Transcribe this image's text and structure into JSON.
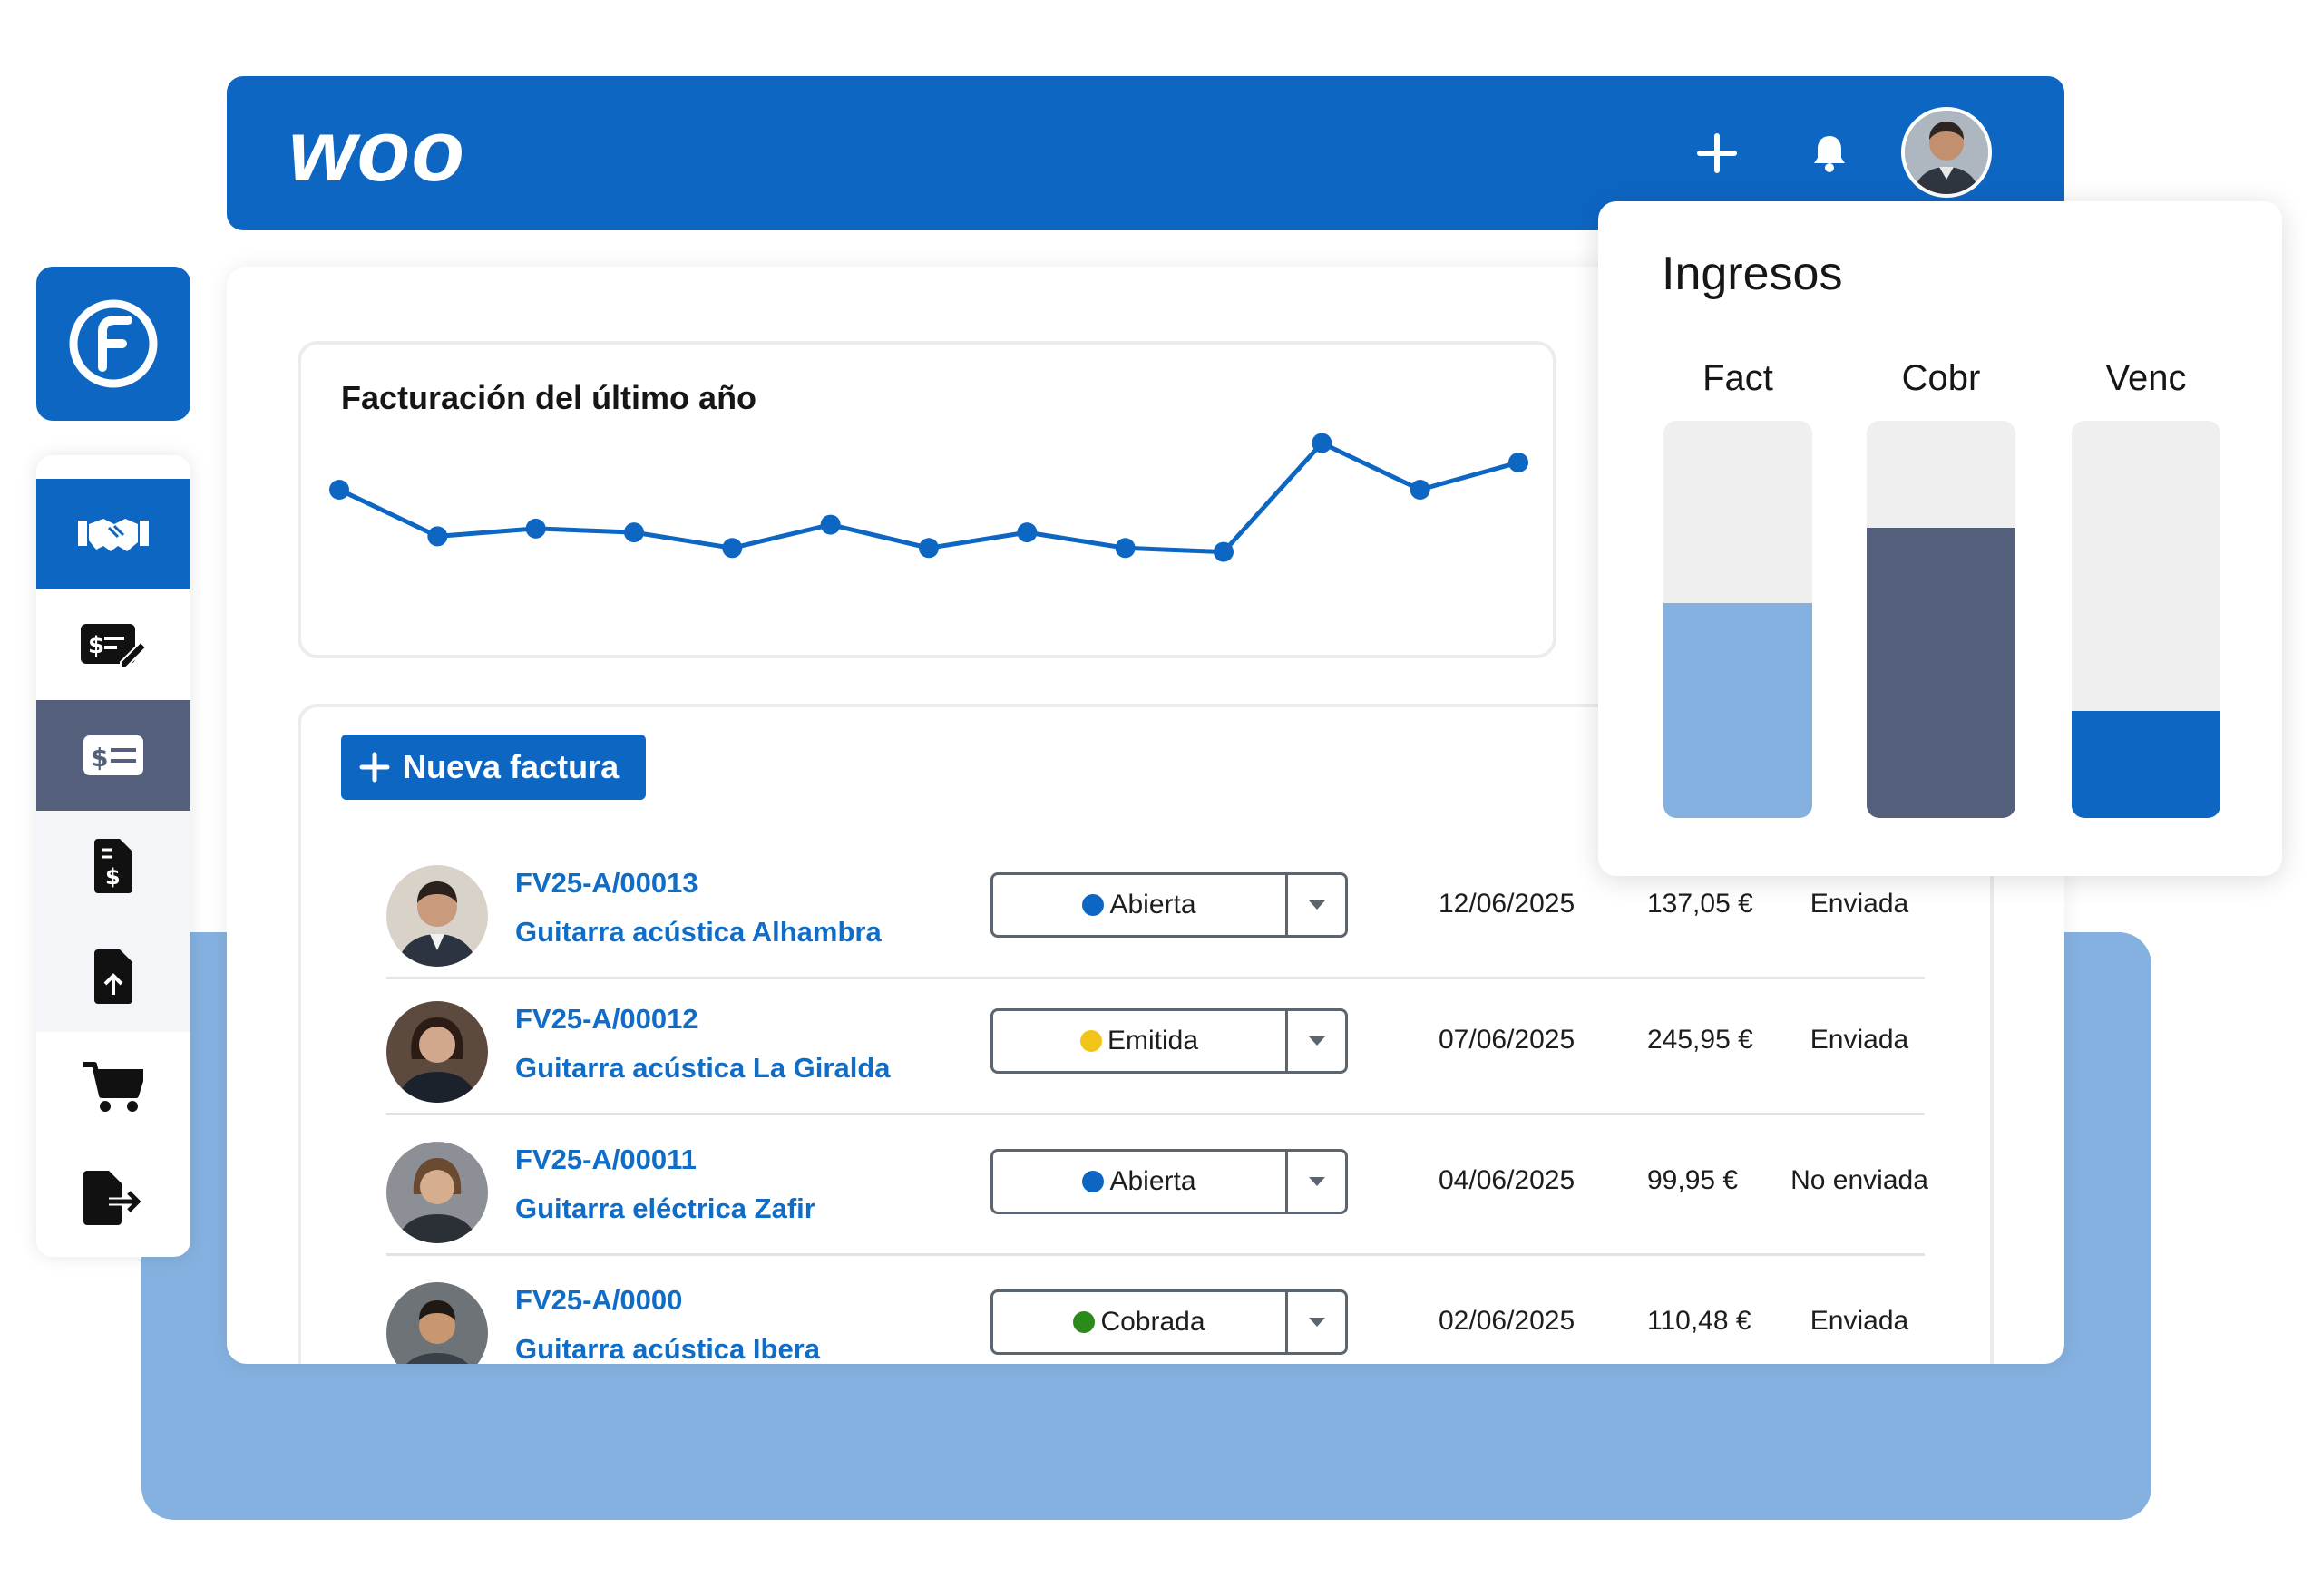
{
  "app": {
    "logo_text": "woo",
    "brand_color": "#0e66c3"
  },
  "topbar": {
    "actions": [
      {
        "icon": "plus-icon"
      },
      {
        "icon": "bell-icon"
      }
    ],
    "user_avatar": "user-avatar"
  },
  "sidebar": {
    "logo_icon": "f-circle-logo-icon",
    "items": [
      {
        "icon": "handshake-icon",
        "state": "active"
      },
      {
        "icon": "invoice-edit-icon",
        "state": "default"
      },
      {
        "icon": "invoice-list-icon",
        "state": "selected"
      },
      {
        "icon": "document-dollar-icon",
        "state": "default"
      },
      {
        "icon": "document-upload-icon",
        "state": "default"
      },
      {
        "icon": "cart-icon",
        "state": "default"
      },
      {
        "icon": "export-icon",
        "state": "default"
      }
    ]
  },
  "revenue_chart": {
    "title": "Facturación del último año"
  },
  "chart_data": [
    {
      "type": "line",
      "title": "Facturación del último año",
      "x": [
        1,
        2,
        3,
        4,
        5,
        6,
        7,
        8,
        9,
        10,
        11,
        12,
        13
      ],
      "values": [
        42,
        30,
        32,
        31,
        27,
        33,
        27,
        31,
        27,
        26,
        54,
        42,
        49
      ],
      "ylim": [
        0,
        70
      ],
      "grid": false,
      "color": "#0e66c3"
    },
    {
      "type": "bar",
      "title": "Ingresos",
      "categories": [
        "Fact",
        "Cobr",
        "Venc"
      ],
      "values": [
        54,
        73,
        27
      ],
      "ylim": [
        0,
        100
      ],
      "colors": [
        "#85b1e0",
        "#535f7b",
        "#0e66c3"
      ],
      "track_color": "#efefef"
    }
  ],
  "ingresos": {
    "title": "Ingresos",
    "labels": [
      "Fact",
      "Cobr",
      "Venc"
    ]
  },
  "invoices": {
    "new_button_label": "Nueva factura",
    "rows": [
      {
        "code": "FV25-A/00013",
        "name": "Guitarra acústica Alhambra",
        "status": "Abierta",
        "status_color": "#0e66c3",
        "date": "12/06/2025",
        "amount": "137,05 €",
        "sent": "Enviada"
      },
      {
        "code": "FV25-A/00012",
        "name": "Guitarra acústica La Giralda",
        "status": "Emitida",
        "status_color": "#f2c418",
        "date": "07/06/2025",
        "amount": "245,95 €",
        "sent": "Enviada"
      },
      {
        "code": "FV25-A/00011",
        "name": "Guitarra eléctrica Zafir",
        "status": "Abierta",
        "status_color": "#0e66c3",
        "date": "04/06/2025",
        "amount": "99,95 €",
        "sent": "No enviada"
      },
      {
        "code": "FV25-A/0000",
        "name": "Guitarra acústica Ibera",
        "status": "Cobrada",
        "status_color": "#2a8a1a",
        "date": "02/06/2025",
        "amount": "110,48 €",
        "sent": "Enviada"
      }
    ]
  }
}
